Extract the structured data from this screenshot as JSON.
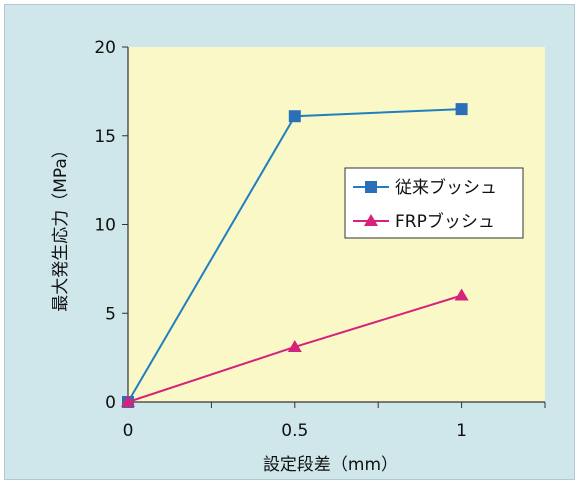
{
  "chart_data": {
    "type": "line",
    "title": "",
    "xlabel": "設定段差（mm）",
    "ylabel": "最大発生応力（MPa）",
    "x": [
      0,
      0.5,
      1
    ],
    "x_ticks": [
      "0",
      "0.5",
      "1"
    ],
    "y_ticks": [
      "0",
      "5",
      "10",
      "15",
      "20"
    ],
    "xlim": [
      0,
      1.25
    ],
    "ylim": [
      0,
      20
    ],
    "grid": false,
    "legend_position": "right",
    "series": [
      {
        "name": "従来ブッシュ",
        "values": [
          0,
          16.1,
          16.5
        ],
        "color": "#1f7fc0",
        "marker": "square",
        "marker_color": "#2a6fb8"
      },
      {
        "name": "FRPブッシュ",
        "values": [
          0,
          3.1,
          6.0
        ],
        "color": "#d6227a",
        "marker": "triangle",
        "marker_color": "#d6227a"
      }
    ],
    "plot_background": "#fbf8c8",
    "frame_background": "#cfe6eb"
  }
}
